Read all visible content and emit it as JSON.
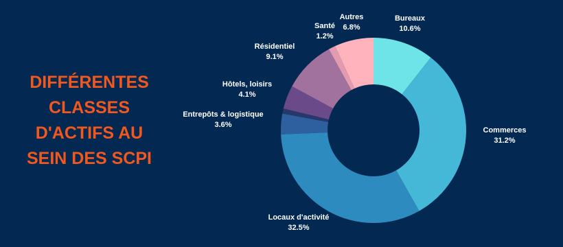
{
  "chart_data": {
    "type": "donut",
    "title": [
      "DIFFÉRENTES",
      "CLASSES",
      "D'ACTIFS AU",
      "SEIN DES SCPI"
    ],
    "categories": [
      "Bureaux",
      "Commerces",
      "Locaux d'activité",
      "Entrepôts & logistique",
      null,
      "Hôtels, loisirs",
      "Résidentiel",
      "Santé",
      "Autres"
    ],
    "values": [
      10.6,
      31.2,
      32.5,
      3.6,
      0.9,
      4.1,
      9.1,
      1.2,
      6.8
    ],
    "value_labels": [
      "10.6%",
      "31.2%",
      "32.5%",
      "3.6%",
      null,
      "4.1%",
      "9.1%",
      "1.2%",
      "6.8%"
    ],
    "colors": [
      "#6ee3e8",
      "#45b8d8",
      "#2e8bbf",
      "#2e5f9e",
      "#27386b",
      "#6b4a8a",
      "#a2729e",
      "#e39bb0",
      "#ffb3bd"
    ]
  }
}
